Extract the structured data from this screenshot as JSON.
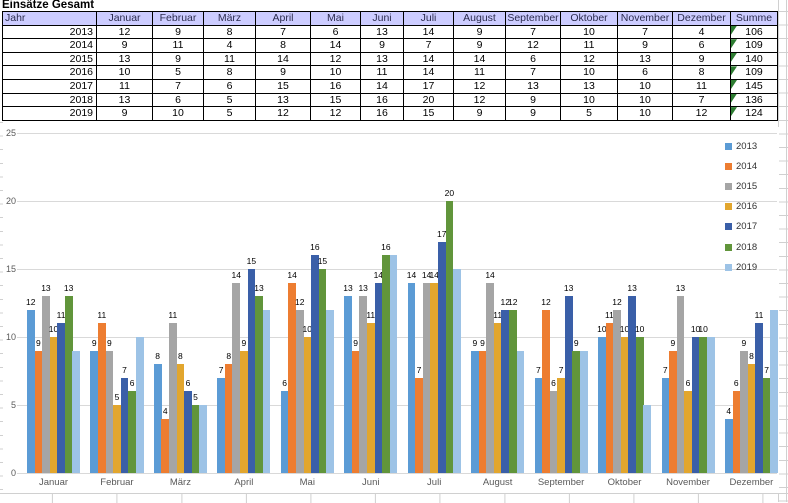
{
  "title": "Einsätze Gesamt",
  "table": {
    "header": [
      "Jahr",
      "Januar",
      "Februar",
      "März",
      "April",
      "Mai",
      "Juni",
      "Juli",
      "August",
      "September",
      "Oktober",
      "November",
      "Dezember",
      "Summe"
    ],
    "rows": [
      {
        "year": "2013",
        "values": [
          12,
          9,
          8,
          7,
          6,
          13,
          14,
          9,
          7,
          10,
          7,
          4
        ],
        "sum": "106"
      },
      {
        "year": "2014",
        "values": [
          9,
          11,
          4,
          8,
          14,
          9,
          7,
          9,
          12,
          11,
          9,
          6
        ],
        "sum": "109"
      },
      {
        "year": "2015",
        "values": [
          13,
          9,
          11,
          14,
          12,
          13,
          14,
          14,
          6,
          12,
          13,
          9
        ],
        "sum": "140"
      },
      {
        "year": "2016",
        "values": [
          10,
          5,
          8,
          9,
          10,
          11,
          14,
          11,
          7,
          10,
          6,
          8
        ],
        "sum": "109"
      },
      {
        "year": "2017",
        "values": [
          11,
          7,
          6,
          15,
          16,
          14,
          17,
          12,
          13,
          13,
          10,
          11
        ],
        "sum": "145"
      },
      {
        "year": "2018",
        "values": [
          13,
          6,
          5,
          13,
          15,
          16,
          20,
          12,
          9,
          10,
          10,
          7
        ],
        "sum": "136"
      },
      {
        "year": "2019",
        "values": [
          9,
          10,
          5,
          12,
          12,
          16,
          15,
          9,
          9,
          5,
          10,
          12
        ],
        "sum": "124"
      }
    ]
  },
  "chart_data": {
    "type": "bar",
    "title": "",
    "categories": [
      "Januar",
      "Februar",
      "März",
      "April",
      "Mai",
      "Juni",
      "Juli",
      "August",
      "September",
      "Oktober",
      "November",
      "Dezember"
    ],
    "series": [
      {
        "name": "2013",
        "color": "#5B9BD5",
        "data_labels": true,
        "values": [
          12,
          9,
          8,
          7,
          6,
          13,
          14,
          9,
          7,
          10,
          7,
          4
        ]
      },
      {
        "name": "2014",
        "color": "#ED7D31",
        "data_labels": true,
        "values": [
          9,
          11,
          4,
          8,
          14,
          9,
          7,
          9,
          12,
          11,
          9,
          6
        ]
      },
      {
        "name": "2015",
        "color": "#A5A5A5",
        "data_labels": true,
        "values": [
          13,
          9,
          11,
          14,
          12,
          13,
          14,
          14,
          6,
          12,
          13,
          9
        ]
      },
      {
        "name": "2016",
        "color": "#E2A62E",
        "data_labels": true,
        "values": [
          10,
          5,
          8,
          9,
          10,
          11,
          14,
          11,
          7,
          10,
          6,
          8
        ]
      },
      {
        "name": "2017",
        "color": "#3A5FA8",
        "data_labels": true,
        "values": [
          11,
          7,
          6,
          15,
          16,
          14,
          17,
          12,
          13,
          13,
          10,
          11
        ]
      },
      {
        "name": "2018",
        "color": "#61953B",
        "data_labels": true,
        "values": [
          13,
          6,
          5,
          13,
          15,
          16,
          20,
          12,
          9,
          10,
          10,
          7
        ]
      },
      {
        "name": "2019",
        "color": "#9DC3E6",
        "data_labels": false,
        "values": [
          9,
          10,
          5,
          12,
          12,
          16,
          15,
          9,
          9,
          5,
          10,
          12
        ]
      }
    ],
    "ylim": [
      0,
      25
    ],
    "yticks": [
      0,
      5,
      10,
      15,
      20,
      25
    ],
    "grid": true,
    "legend_position": "right"
  },
  "colors": {
    "header_bg": "#CCCCFF",
    "header_text": "#2B2B4E",
    "cell_text": "#000000",
    "table_border": "#000000",
    "sum_triangle": "#2E7D32",
    "gridline": "#D9D9D9",
    "axis_text": "#595959",
    "data_label_text": "#000000",
    "sheet_gridline": "#D0D0D0"
  }
}
